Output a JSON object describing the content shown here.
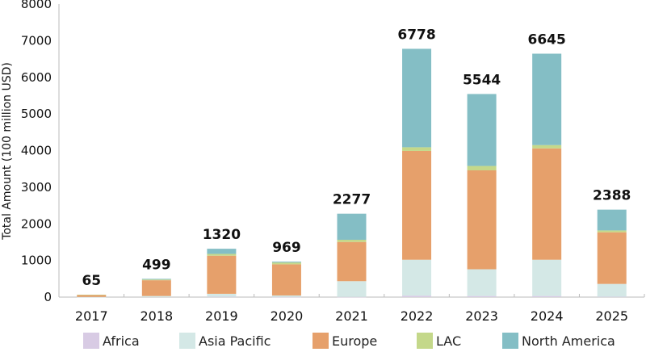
{
  "chart_data": {
    "type": "bar",
    "stacked": true,
    "title": "",
    "xlabel": "",
    "ylabel": "Total Amount (100 million USD)",
    "ylim": [
      0,
      8000
    ],
    "yticks": [
      0,
      1000,
      2000,
      3000,
      4000,
      5000,
      6000,
      7000,
      8000
    ],
    "grid": false,
    "legend_position": "bottom",
    "categories": [
      "2017",
      "2018",
      "2019",
      "2020",
      "2021",
      "2022",
      "2023",
      "2024",
      "2025"
    ],
    "totals": [
      65,
      499,
      1320,
      969,
      2277,
      6778,
      5544,
      6645,
      2388
    ],
    "series": [
      {
        "name": "Africa",
        "color": "#d8cbe4",
        "values": [
          0,
          0,
          10,
          5,
          5,
          40,
          30,
          30,
          10
        ]
      },
      {
        "name": "Asia Pacific",
        "color": "#d4e8e6",
        "values": [
          5,
          30,
          80,
          40,
          430,
          980,
          730,
          990,
          350
        ]
      },
      {
        "name": "Europe",
        "color": "#e6a06b",
        "values": [
          55,
          430,
          1040,
          850,
          1070,
          2970,
          2700,
          3040,
          1410
        ]
      },
      {
        "name": "LAC",
        "color": "#c4d88a",
        "values": [
          5,
          20,
          50,
          50,
          60,
          100,
          120,
          90,
          50
        ]
      },
      {
        "name": "North America",
        "color": "#84bec5",
        "values": [
          0,
          19,
          140,
          24,
          712,
          2688,
          1964,
          2495,
          568
        ]
      }
    ]
  }
}
